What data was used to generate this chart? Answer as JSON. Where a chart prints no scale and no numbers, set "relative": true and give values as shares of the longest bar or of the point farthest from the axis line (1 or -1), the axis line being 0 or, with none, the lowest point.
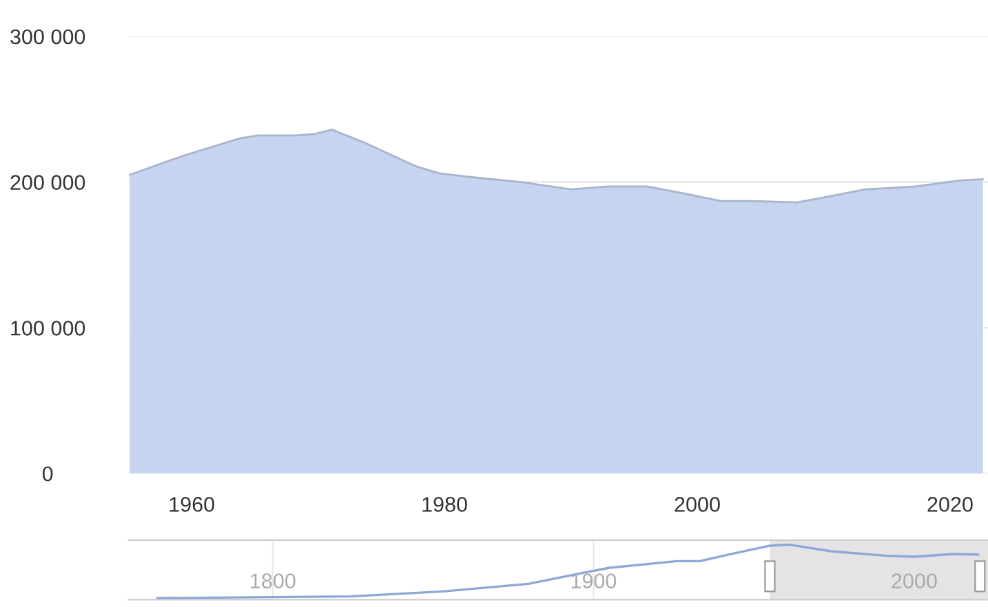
{
  "chart_data": [
    {
      "type": "area",
      "x": [
        1955.1,
        1959.3,
        1963.8,
        1965.2,
        1968.2,
        1969.7,
        1971.1,
        1973.7,
        1977.7,
        1979.6,
        1982.6,
        1986.1,
        1990,
        1993,
        1996,
        1998.5,
        2001.9,
        2004.4,
        2007.9,
        2010.3,
        2013.3,
        2017.3,
        2020.7,
        2022.6
      ],
      "series": [
        {
          "color": "#c6d4ef",
          "values": [
            205000,
            218000,
            230000,
            232000,
            232000,
            233000,
            236000,
            227000,
            211000,
            206000,
            203000,
            200000,
            195000,
            197000,
            197000,
            193000,
            187000,
            187000,
            186000,
            190000,
            195000,
            197000,
            201000,
            202000
          ]
        }
      ],
      "xlim": [
        1955,
        2023
      ],
      "xticks": [
        1960,
        1980,
        2000,
        2020
      ],
      "ylim": [
        0,
        300000
      ],
      "yticks": [
        {
          "value": 0,
          "label": "0"
        },
        {
          "value": 100000,
          "label": "100 000"
        },
        {
          "value": 200000,
          "label": "200 000"
        },
        {
          "value": 300000,
          "label": "300 000"
        }
      ],
      "grid": "y"
    },
    {
      "type": "line",
      "relative": true,
      "x": [
        1764,
        1824,
        1853,
        1880,
        1897,
        1905,
        1926,
        1933,
        1943,
        1955,
        1961,
        1974,
        1991,
        2000,
        2012,
        2020
      ],
      "series": [
        {
          "color": "#8fa6d8",
          "values": [
            0.03,
            0.06,
            0.15,
            0.29,
            0.49,
            0.58,
            0.7,
            0.7,
            0.83,
            0.98,
            1.0,
            0.88,
            0.8,
            0.78,
            0.83,
            0.82
          ]
        }
      ],
      "xlim": [
        1755,
        2023
      ],
      "xticks": [
        1800,
        1900,
        2000
      ],
      "grid": "x",
      "bands": [
        {
          "axis": "x",
          "from": 1955,
          "to": 2023,
          "color": "#e4e4e4"
        }
      ]
    }
  ]
}
